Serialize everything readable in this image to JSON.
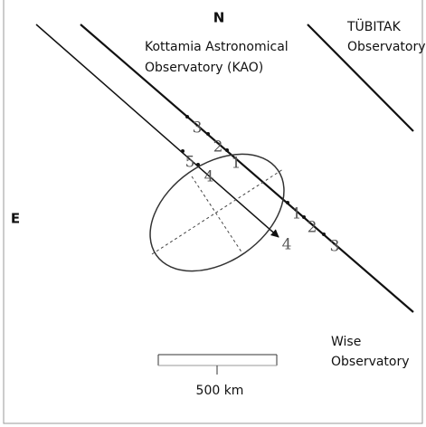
{
  "direction_labels": {
    "north": "N",
    "east": "E"
  },
  "observatories": {
    "kao": [
      "Kottamia Astronomical",
      "Observatory (KAO)"
    ],
    "tubitak": [
      "TÜBITAK",
      "Observatory"
    ],
    "wise": [
      "Wise",
      "Observatory"
    ]
  },
  "chord_kao_points": [
    "3",
    "2",
    "1",
    "1",
    "2",
    "3"
  ],
  "chord_second_points": [
    "5",
    "4",
    "4"
  ],
  "scale_label": "500 km"
}
